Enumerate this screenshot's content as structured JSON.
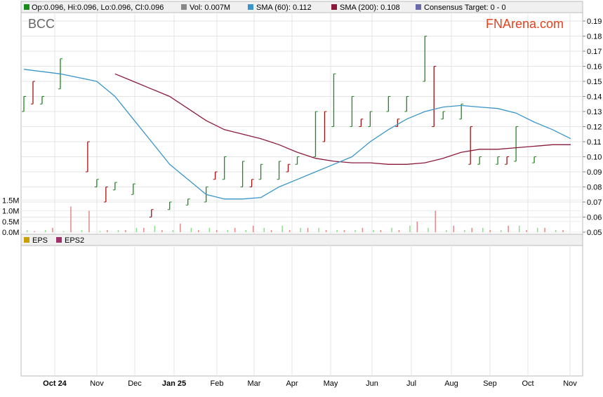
{
  "ticker": "BCC",
  "brand": "FNArena.com",
  "legend": {
    "ohlc": "Op:0.096, Hi:0.096, Lo:0.096, Cl:0.096",
    "vol": "Vol: 0.007M",
    "sma60": "SMA (60): 0.112",
    "sma200": "SMA (200): 0.108",
    "consensus": "Consensus Target: 0 - 0"
  },
  "eps_legend": {
    "eps": "EPS",
    "eps2": "EPS2"
  },
  "colors": {
    "up": "#1a8a1a",
    "down": "#a01010",
    "sma60": "#3a96c8",
    "sma200": "#8b1a3a",
    "vol_up": "#8fdc8f",
    "vol_down": "#e08a8a",
    "eps": "#c8a000",
    "eps2": "#a0306a",
    "consensus": "#6a6aa8"
  },
  "chart_data": {
    "type": "line",
    "price_axis": {
      "min": 0.05,
      "max": 0.19,
      "ticks": [
        "0.19",
        "0.18",
        "0.17",
        "0.16",
        "0.15",
        "0.14",
        "0.13",
        "0.12",
        "0.11",
        "0.10",
        "0.09",
        "0.08",
        "0.07",
        "0.06",
        "0.05"
      ]
    },
    "volume_axis": {
      "max_m": 2.0,
      "ticks": [
        "1.5M",
        "1.0M",
        "0.5M",
        "0.0M"
      ]
    },
    "months": [
      "Oct 24",
      "Nov",
      "Dec",
      "Jan 25",
      "Feb",
      "Mar",
      "Apr",
      "May",
      "Jun",
      "Jul",
      "Aug",
      "Sep",
      "Oct",
      "Nov"
    ],
    "x": [
      0,
      4,
      8,
      10,
      12,
      14,
      16,
      18,
      20,
      22,
      24,
      26,
      28,
      30,
      32,
      34,
      36,
      38,
      40,
      42,
      44,
      46,
      48,
      50,
      52,
      54,
      56,
      58,
      60
    ],
    "x_unit": "weeks from Oct 2024",
    "sma60": [
      0.158,
      0.155,
      0.15,
      0.14,
      0.125,
      0.11,
      0.095,
      0.085,
      0.075,
      0.072,
      0.072,
      0.073,
      0.08,
      0.085,
      0.09,
      0.095,
      0.1,
      0.11,
      0.118,
      0.125,
      0.13,
      0.133,
      0.134,
      0.133,
      0.132,
      0.129,
      0.123,
      0.118,
      0.112
    ],
    "sma200": [
      null,
      null,
      null,
      0.155,
      0.15,
      0.145,
      0.14,
      0.132,
      0.124,
      0.118,
      0.115,
      0.112,
      0.108,
      0.103,
      0.099,
      0.097,
      0.096,
      0.096,
      0.095,
      0.095,
      0.096,
      0.099,
      0.103,
      0.105,
      0.105,
      0.106,
      0.107,
      0.108,
      0.108
    ],
    "price_up": [
      [
        0,
        0.13,
        0.14
      ],
      [
        2,
        0.135,
        0.14
      ],
      [
        4,
        0.145,
        0.165
      ],
      [
        8,
        0.08,
        0.085
      ],
      [
        10,
        0.078,
        0.083
      ],
      [
        12,
        0.075,
        0.082
      ],
      [
        16,
        0.065,
        0.07
      ],
      [
        18,
        0.068,
        0.072
      ],
      [
        20,
        0.07,
        0.08
      ],
      [
        22,
        0.085,
        0.1
      ],
      [
        24,
        0.08,
        0.097
      ],
      [
        26,
        0.085,
        0.095
      ],
      [
        28,
        0.085,
        0.097
      ],
      [
        30,
        0.095,
        0.1
      ],
      [
        32,
        0.1,
        0.13
      ],
      [
        34,
        0.12,
        0.155
      ],
      [
        36,
        0.12,
        0.14
      ],
      [
        38,
        0.12,
        0.13
      ],
      [
        40,
        0.13,
        0.14
      ],
      [
        42,
        0.13,
        0.14
      ],
      [
        44,
        0.15,
        0.18
      ],
      [
        46,
        0.125,
        0.13
      ],
      [
        48,
        0.125,
        0.135
      ],
      [
        50,
        0.095,
        0.1
      ],
      [
        52,
        0.095,
        0.1
      ],
      [
        54,
        0.097,
        0.12
      ],
      [
        56,
        0.096,
        0.1
      ]
    ],
    "price_down": [
      [
        1,
        0.135,
        0.15
      ],
      [
        7,
        0.09,
        0.11
      ],
      [
        9,
        0.07,
        0.08
      ],
      [
        14,
        0.06,
        0.065
      ],
      [
        21,
        0.085,
        0.09
      ],
      [
        25,
        0.08,
        0.085
      ],
      [
        29,
        0.09,
        0.095
      ],
      [
        33,
        0.11,
        0.13
      ],
      [
        37,
        0.12,
        0.125
      ],
      [
        41,
        0.12,
        0.125
      ],
      [
        45,
        0.12,
        0.16
      ],
      [
        49,
        0.095,
        0.12
      ],
      [
        53,
        0.095,
        0.1
      ]
    ],
    "volume_up_m": [
      0.1,
      0.1,
      0.05,
      0.1,
      0.05,
      0.1,
      0.2,
      0.3,
      0.1,
      0.2,
      0.2,
      0.1,
      0.1,
      0.2,
      0.3,
      0.2,
      0.2,
      0.1,
      0.1,
      0.1,
      0.2,
      0.3,
      0.2,
      0.1,
      0.1,
      0.2,
      0.1,
      0.3,
      0.2,
      0.1
    ],
    "volume_down_m": [
      0.05,
      0.2,
      1.2,
      1.0,
      0.1,
      0.1,
      0.2,
      0.1,
      0.4,
      0.1,
      0.1,
      0.2,
      0.3,
      0.1,
      0.1,
      0.2,
      0.1,
      0.1,
      0.2,
      0.1,
      0.1,
      0.5,
      1.0,
      0.3,
      0.2,
      0.1,
      0.3,
      0.1,
      0.2,
      0.1
    ],
    "grid": true
  }
}
